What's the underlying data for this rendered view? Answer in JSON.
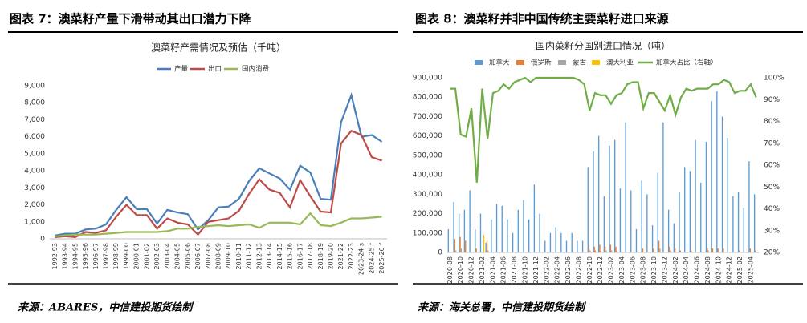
{
  "panels": [
    {
      "heading": "图表 7：澳菜籽产量下滑带动其出口潜力下降",
      "source": "来源：ABARES，中信建投期货绘制"
    },
    {
      "heading": "图表 8：澳菜籽并非中国传统主要菜籽进口来源",
      "source": "来源：海关总署，中信建投期货绘制"
    }
  ],
  "chart_data": [
    {
      "type": "line",
      "title": "澳菜籽产需情况及预估（千吨）",
      "categories": [
        "1992-93",
        "1993-94",
        "1994-95",
        "1995-96",
        "1996-97",
        "1997-98",
        "1998-99",
        "1999-00",
        "2000-01",
        "2001-02",
        "2002-03",
        "2003-04",
        "2004-05",
        "2005-06",
        "2006-07",
        "2007-08",
        "2008-09",
        "2009-10",
        "2010-11",
        "2011-12",
        "2012-13",
        "2013-14",
        "2014-15",
        "2015-16",
        "2016-17",
        "2017-18",
        "2018-19",
        "2019-20",
        "2021-22",
        "2022-23",
        "2023-24 s",
        "2024-25 f",
        "2025-26 f"
      ],
      "series": [
        {
          "name": "产量",
          "color": "#4a7ebb",
          "values": [
            200,
            300,
            300,
            550,
            600,
            850,
            1700,
            2450,
            1750,
            1750,
            900,
            1700,
            1550,
            1450,
            550,
            1100,
            1850,
            1900,
            2350,
            3400,
            4150,
            3850,
            3550,
            2900,
            4300,
            3900,
            2350,
            2300,
            6850,
            8450,
            6000,
            6100,
            5700
          ]
        },
        {
          "name": "出口",
          "color": "#be4b48",
          "values": [
            100,
            150,
            100,
            400,
            350,
            500,
            1300,
            2000,
            1400,
            1400,
            600,
            1200,
            950,
            850,
            250,
            1000,
            1100,
            1200,
            1650,
            2650,
            3500,
            2900,
            2700,
            1850,
            3450,
            2500,
            1600,
            1550,
            5600,
            6350,
            6100,
            4800,
            4600
          ]
        },
        {
          "name": "国内消费",
          "color": "#98b954",
          "values": [
            150,
            200,
            250,
            250,
            250,
            300,
            350,
            400,
            400,
            400,
            400,
            450,
            600,
            600,
            700,
            750,
            800,
            750,
            800,
            850,
            650,
            950,
            950,
            950,
            850,
            1500,
            800,
            750,
            950,
            1200,
            1200,
            1250,
            1300
          ]
        }
      ],
      "ylim": [
        0,
        9000
      ],
      "yticks": [
        0,
        {
          "value": 1000,
          "label": "1,000"
        },
        {
          "value": 2000,
          "label": "2,000"
        },
        {
          "value": 3000,
          "label": "3,000"
        },
        {
          "value": 4000,
          "label": "4,000"
        },
        {
          "value": 5000,
          "label": "5,000"
        },
        {
          "value": 6000,
          "label": "6,000"
        },
        {
          "value": 7000,
          "label": "7,000"
        },
        {
          "value": 8000,
          "label": "8,000"
        },
        {
          "value": 9000,
          "label": "9,000"
        }
      ],
      "grid": false,
      "legend": "top"
    },
    {
      "type": "combo",
      "title": "国内菜籽分国别进口情况（吨）",
      "categories": [
        "2020-08",
        null,
        "2020-10",
        null,
        "2020-12",
        null,
        "2021-02",
        null,
        "2021-04",
        null,
        "2021-06",
        null,
        "2021-08",
        null,
        "2021-10",
        null,
        "2021-12",
        null,
        "2022-02",
        null,
        "2022-04",
        null,
        "2022-06",
        null,
        "2022-08",
        null,
        "2022-10",
        null,
        "2022-12",
        null,
        "2023-02",
        null,
        "2023-04",
        null,
        "2023-06",
        null,
        "2023-08",
        null,
        "2023-10",
        null,
        "2023-12",
        null,
        "2024-02",
        null,
        "2024-04",
        null,
        "2024-06",
        null,
        "2024-08",
        null,
        "2024-10",
        null,
        "2024-12",
        null,
        "2025-02",
        null,
        "2025-04",
        null
      ],
      "series": [
        {
          "name": "加拿大",
          "kind": "bar",
          "color": "#5b9bd5",
          "values": [
            120000,
            260000,
            200000,
            220000,
            320000,
            120000,
            200000,
            50000,
            170000,
            250000,
            240000,
            170000,
            100000,
            220000,
            270000,
            170000,
            350000,
            200000,
            60000,
            100000,
            130000,
            100000,
            60000,
            100000,
            60000,
            60000,
            440000,
            520000,
            600000,
            290000,
            550000,
            580000,
            330000,
            670000,
            320000,
            120000,
            370000,
            300000,
            140000,
            410000,
            670000,
            220000,
            150000,
            310000,
            440000,
            420000,
            580000,
            360000,
            570000,
            780000,
            830000,
            700000,
            590000,
            290000,
            310000,
            230000,
            470000,
            300000
          ]
        },
        {
          "name": "俄罗斯",
          "kind": "bar",
          "color": "#ed7d31",
          "values": [
            0,
            70000,
            80000,
            60000,
            0,
            20000,
            0,
            60000,
            0,
            0,
            0,
            0,
            0,
            0,
            0,
            0,
            0,
            0,
            0,
            0,
            0,
            0,
            0,
            0,
            0,
            0,
            20000,
            30000,
            40000,
            30000,
            40000,
            30000,
            0,
            0,
            0,
            0,
            20000,
            0,
            20000,
            60000,
            0,
            30000,
            20000,
            10000,
            0,
            10000,
            0,
            0,
            20000,
            20000,
            20000,
            20000,
            0,
            0,
            10000,
            0,
            20000,
            10000
          ]
        },
        {
          "name": "蒙古",
          "kind": "bar",
          "color": "#a5a5a5",
          "values": [
            0,
            10000,
            20000,
            0,
            0,
            0,
            0,
            10000,
            0,
            0,
            0,
            0,
            0,
            0,
            0,
            0,
            0,
            0,
            0,
            0,
            0,
            0,
            0,
            0,
            0,
            0,
            10000,
            10000,
            10000,
            10000,
            10000,
            10000,
            0,
            0,
            0,
            0,
            0,
            0,
            0,
            20000,
            0,
            10000,
            0,
            0,
            0,
            0,
            0,
            0,
            10000,
            0,
            0,
            0,
            0,
            0,
            0,
            0,
            0,
            0
          ]
        },
        {
          "name": "澳大利亚",
          "kind": "bar",
          "color": "#ffc000",
          "values": [
            0,
            0,
            0,
            0,
            0,
            0,
            90000,
            0,
            0,
            0,
            0,
            0,
            0,
            0,
            0,
            0,
            0,
            0,
            0,
            0,
            0,
            0,
            0,
            0,
            0,
            0,
            0,
            0,
            0,
            0,
            0,
            0,
            0,
            0,
            0,
            0,
            0,
            0,
            0,
            0,
            0,
            0,
            0,
            0,
            0,
            0,
            0,
            0,
            0,
            0,
            0,
            0,
            0,
            0,
            0,
            0,
            0,
            0
          ]
        },
        {
          "name": "加拿大占比（右轴）",
          "kind": "line",
          "axis": "y2",
          "color": "#70ad47",
          "values": [
            95,
            95,
            74,
            73,
            86,
            52,
            95,
            72,
            93,
            94,
            97,
            95,
            98,
            99,
            100,
            98,
            100,
            100,
            100,
            100,
            100,
            100,
            100,
            100,
            99,
            97,
            85,
            93,
            92,
            92,
            88,
            92,
            93,
            97,
            98,
            98,
            86,
            93,
            93,
            89,
            85,
            92,
            83,
            91,
            95,
            94,
            95,
            95,
            95,
            97,
            97,
            99,
            98,
            93,
            94,
            94,
            97,
            91
          ]
        }
      ],
      "ylim": [
        0,
        900000
      ],
      "yticks": [
        0,
        {
          "value": 100000,
          "label": "100,000"
        },
        {
          "value": 200000,
          "label": "200,000"
        },
        {
          "value": 300000,
          "label": "300,000"
        },
        {
          "value": 400000,
          "label": "400,000"
        },
        {
          "value": 500000,
          "label": "500,000"
        },
        {
          "value": 600000,
          "label": "600,000"
        },
        {
          "value": 700000,
          "label": "700,000"
        },
        {
          "value": 800000,
          "label": "800,000"
        },
        {
          "value": 900000,
          "label": "900,000"
        }
      ],
      "y2lim": [
        20,
        100
      ],
      "y2ticks": [
        {
          "value": 20,
          "label": "20%"
        },
        {
          "value": 30,
          "label": "30%"
        },
        {
          "value": 40,
          "label": "40%"
        },
        {
          "value": 50,
          "label": "50%"
        },
        {
          "value": 60,
          "label": "60%"
        },
        {
          "value": 70,
          "label": "70%"
        },
        {
          "value": 80,
          "label": "80%"
        },
        {
          "value": 90,
          "label": "90%"
        },
        {
          "value": 100,
          "label": "100%"
        }
      ],
      "grid": false,
      "legend": "top"
    }
  ]
}
